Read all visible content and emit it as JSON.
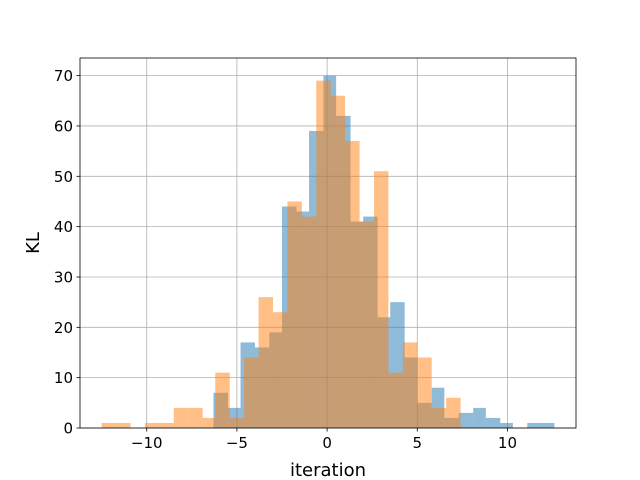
{
  "chart_data": {
    "type": "histogram",
    "xlabel": "iteration",
    "ylabel": "KL",
    "xlim": [
      -13.7,
      13.8
    ],
    "ylim": [
      0,
      73.5
    ],
    "xticks": [
      -10,
      -5,
      0,
      5,
      10
    ],
    "xtick_labels": [
      "−10",
      "−5",
      "0",
      "5",
      "10"
    ],
    "yticks": [
      0,
      10,
      20,
      30,
      40,
      50,
      60,
      70
    ],
    "ytick_labels": [
      "0",
      "10",
      "20",
      "30",
      "40",
      "50",
      "60",
      "70"
    ],
    "grid": true,
    "series": [
      {
        "color": "#1f77b4",
        "opacity": 0.5,
        "bins": [
          [
            -6.3,
            -5.5,
            7
          ],
          [
            -5.5,
            -4.8,
            4
          ],
          [
            -4.8,
            -4.0,
            17
          ],
          [
            -4.0,
            -3.2,
            16
          ],
          [
            -3.2,
            -2.5,
            19
          ],
          [
            -2.5,
            -1.7,
            44
          ],
          [
            -1.7,
            -1.0,
            43
          ],
          [
            -1.0,
            -0.2,
            59
          ],
          [
            -0.2,
            0.5,
            70
          ],
          [
            0.5,
            1.3,
            62
          ],
          [
            1.3,
            2.0,
            41
          ],
          [
            2.0,
            2.8,
            42
          ],
          [
            2.8,
            3.5,
            22
          ],
          [
            3.5,
            4.3,
            25
          ],
          [
            4.3,
            5.0,
            14
          ],
          [
            5.0,
            5.8,
            5
          ],
          [
            5.8,
            6.5,
            8
          ],
          [
            6.5,
            7.3,
            2
          ],
          [
            7.3,
            8.1,
            3
          ],
          [
            8.1,
            8.8,
            4
          ],
          [
            8.8,
            9.6,
            2
          ],
          [
            9.6,
            10.3,
            1
          ],
          [
            10.3,
            11.1,
            0
          ],
          [
            11.1,
            11.8,
            1
          ],
          [
            11.8,
            12.6,
            1
          ]
        ]
      },
      {
        "color": "#ff7f0e",
        "opacity": 0.5,
        "bins": [
          [
            -12.5,
            -11.7,
            1
          ],
          [
            -11.7,
            -10.9,
            1
          ],
          [
            -10.9,
            -10.1,
            0
          ],
          [
            -10.1,
            -9.3,
            1
          ],
          [
            -9.3,
            -8.5,
            1
          ],
          [
            -8.5,
            -7.7,
            4
          ],
          [
            -7.7,
            -6.9,
            4
          ],
          [
            -6.9,
            -6.2,
            2
          ],
          [
            -6.2,
            -5.4,
            11
          ],
          [
            -5.4,
            -4.6,
            2
          ],
          [
            -4.6,
            -3.8,
            14
          ],
          [
            -3.8,
            -3.0,
            26
          ],
          [
            -3.0,
            -2.2,
            23
          ],
          [
            -2.2,
            -1.4,
            45
          ],
          [
            -1.4,
            -0.6,
            42
          ],
          [
            -0.6,
            0.2,
            69
          ],
          [
            0.2,
            1.0,
            66
          ],
          [
            1.0,
            1.8,
            57
          ],
          [
            1.8,
            2.6,
            41
          ],
          [
            2.6,
            3.4,
            51
          ],
          [
            3.4,
            4.2,
            11
          ],
          [
            4.2,
            5.0,
            17
          ],
          [
            5.0,
            5.8,
            14
          ],
          [
            5.8,
            6.6,
            4
          ],
          [
            6.6,
            7.4,
            6
          ]
        ]
      }
    ]
  }
}
